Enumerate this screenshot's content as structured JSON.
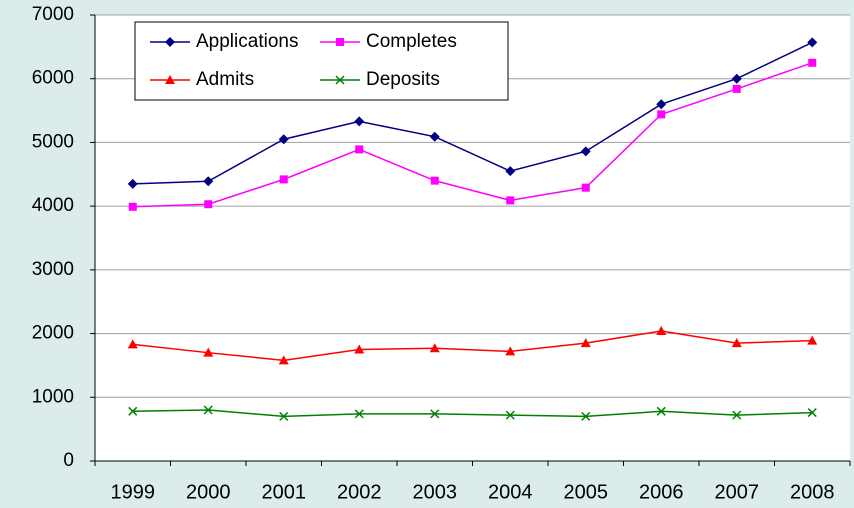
{
  "chart_data": {
    "type": "line",
    "categories": [
      "1999",
      "2000",
      "2001",
      "2002",
      "2003",
      "2004",
      "2005",
      "2006",
      "2007",
      "2008"
    ],
    "series": [
      {
        "name": "Applications",
        "color": "#000080",
        "marker": "diamond",
        "values": [
          4350,
          4390,
          5050,
          5330,
          5090,
          4550,
          4860,
          5600,
          6000,
          6570
        ]
      },
      {
        "name": "Completes",
        "color": "#ff00ff",
        "marker": "square",
        "values": [
          3990,
          4030,
          4420,
          4890,
          4400,
          4090,
          4290,
          5440,
          5840,
          6250
        ]
      },
      {
        "name": "Admits",
        "color": "#ff0000",
        "marker": "triangle",
        "values": [
          1830,
          1700,
          1580,
          1750,
          1770,
          1720,
          1850,
          2040,
          1850,
          1890
        ]
      },
      {
        "name": "Deposits",
        "color": "#008000",
        "marker": "x",
        "values": [
          780,
          800,
          700,
          740,
          740,
          720,
          700,
          780,
          720,
          760
        ]
      }
    ],
    "ylim": [
      0,
      7000
    ],
    "yticks": [
      0,
      1000,
      2000,
      3000,
      4000,
      5000,
      6000,
      7000
    ],
    "grid": true
  }
}
